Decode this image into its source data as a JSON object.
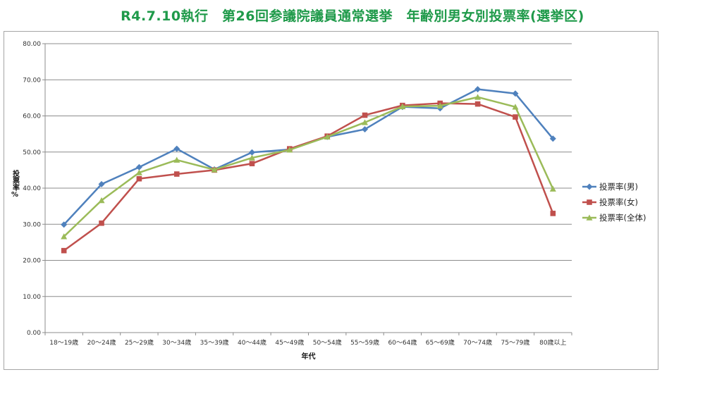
{
  "title": "R4.7.10執行　第26回参議院議員通常選挙　年齢別男女別投票率(選挙区)",
  "chart_data": {
    "type": "line",
    "title": "R4.7.10執行　第26回参議院議員通常選挙　年齢別男女別投票率(選挙区)",
    "xlabel": "年代",
    "ylabel": "投票率%",
    "ylim": [
      0,
      80
    ],
    "ytick_step": 10,
    "ytick_labels": [
      "0.00",
      "10.00",
      "20.00",
      "30.00",
      "40.00",
      "50.00",
      "60.00",
      "70.00",
      "80.00"
    ],
    "grid": true,
    "legend_position": "right",
    "categories": [
      "18～19歳",
      "20～24歳",
      "25～29歳",
      "30～34歳",
      "35～39歳",
      "40～44歳",
      "45～49歳",
      "50～54歳",
      "55～59歳",
      "60～64歳",
      "65～69歳",
      "70～74歳",
      "75～79歳",
      "80歳以上"
    ],
    "series": [
      {
        "name": "投票率(男)",
        "color": "#4f81bd",
        "marker": "diamond",
        "values": [
          29.9,
          41.1,
          45.8,
          50.9,
          45.2,
          49.9,
          50.7,
          54.2,
          56.3,
          62.5,
          62.1,
          67.4,
          66.2,
          53.7
        ]
      },
      {
        "name": "投票率(女)",
        "color": "#c0504d",
        "marker": "square",
        "values": [
          22.7,
          30.3,
          42.6,
          43.9,
          45.0,
          46.8,
          50.9,
          54.4,
          60.2,
          62.9,
          63.5,
          63.3,
          59.7,
          33.0
        ]
      },
      {
        "name": "投票率(全体)",
        "color": "#9bbb59",
        "marker": "triangle",
        "values": [
          26.6,
          36.6,
          44.3,
          47.8,
          45.1,
          48.4,
          50.6,
          54.2,
          58.2,
          62.6,
          62.8,
          65.2,
          62.5,
          39.8
        ]
      }
    ]
  }
}
